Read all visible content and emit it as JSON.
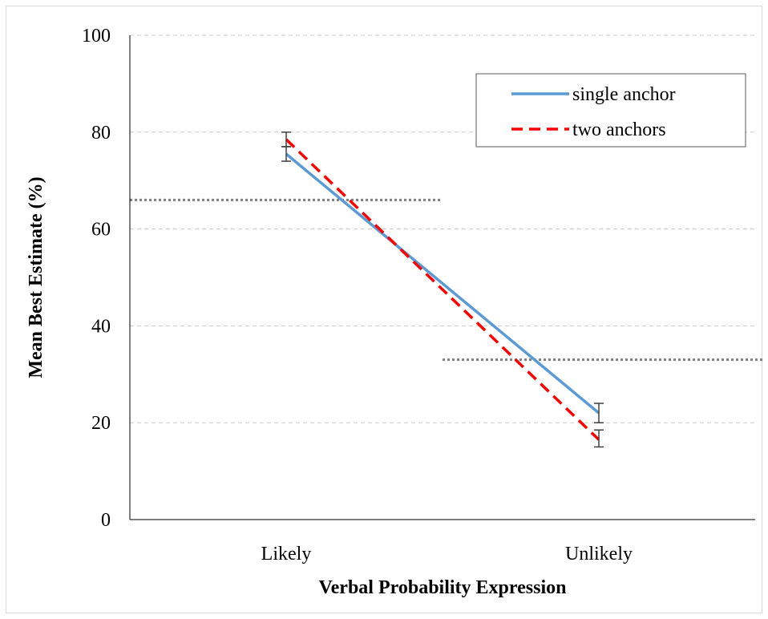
{
  "chart_data": {
    "type": "line",
    "xlabel": "Verbal Probability Expression",
    "ylabel": "Mean Best Estimate (%)",
    "categories": [
      "Likely",
      "Unlikely"
    ],
    "ylim": [
      0,
      100
    ],
    "yticks": [
      0,
      20,
      40,
      60,
      80,
      100
    ],
    "grid": true,
    "legend_position": "top-right",
    "series": [
      {
        "name": "single anchor",
        "values": [
          75.5,
          22
        ],
        "error_low": [
          74,
          20
        ],
        "error_high": [
          77,
          24
        ],
        "color": "#5b9bd5",
        "style": "solid"
      },
      {
        "name": "two anchors",
        "values": [
          78.5,
          16.5
        ],
        "error_low": [
          77,
          15
        ],
        "error_high": [
          80,
          18.5
        ],
        "color": "#ff0000",
        "style": "dashed"
      }
    ],
    "reference_lines": [
      {
        "y": 66,
        "x_from_category": 0,
        "color": "#808080",
        "style": "dotted"
      },
      {
        "y": 33,
        "x_from_category": 1,
        "color": "#808080",
        "style": "dotted"
      }
    ]
  }
}
